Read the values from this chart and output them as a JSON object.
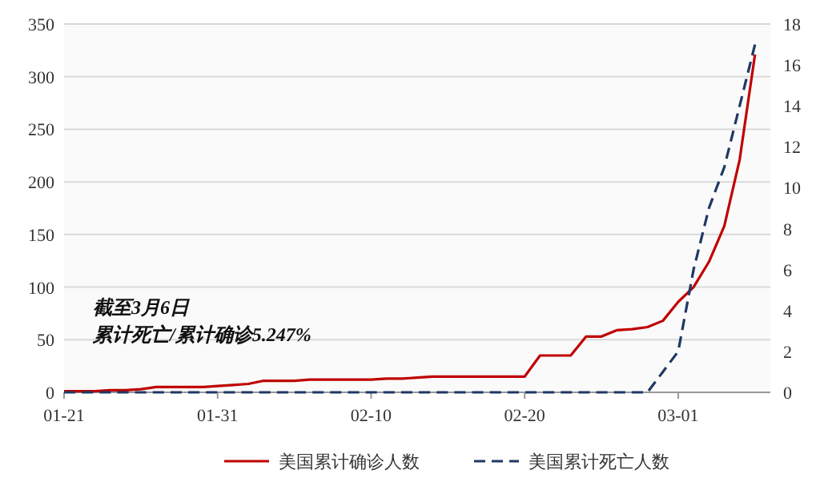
{
  "chart_data": {
    "type": "line",
    "x": [
      "--01-21",
      "--01-22",
      "--01-23",
      "--01-24",
      "--01-25",
      "--01-26",
      "--01-27",
      "--01-28",
      "--01-29",
      "--01-30",
      "--01-31",
      "--02-01",
      "--02-02",
      "--02-03",
      "--02-04",
      "--02-05",
      "--02-06",
      "--02-07",
      "--02-08",
      "--02-09",
      "--02-10",
      "--02-11",
      "--02-12",
      "--02-13",
      "--02-14",
      "--02-15",
      "--02-16",
      "--02-17",
      "--02-18",
      "--02-19",
      "--02-20",
      "--02-21",
      "--02-22",
      "--02-23",
      "--02-24",
      "--02-25",
      "--02-26",
      "--02-27",
      "--02-28",
      "--02-29",
      "--03-01",
      "--03-02",
      "--03-03",
      "--03-04",
      "--03-05",
      "--03-06"
    ],
    "series": [
      {
        "name": "美国累计确诊人数",
        "color": "#c00000",
        "line_style": "solid",
        "values": [
          1,
          1,
          1,
          2,
          2,
          3,
          5,
          5,
          5,
          5,
          6,
          7,
          8,
          11,
          11,
          11,
          12,
          12,
          12,
          12,
          12,
          13,
          13,
          14,
          15,
          15,
          15,
          15,
          15,
          15,
          15,
          35,
          35,
          35,
          53,
          53,
          59,
          60,
          62,
          68,
          86,
          100,
          124,
          158,
          221,
          321
        ]
      },
      {
        "name": "美国累计死亡人数",
        "color": "#1f3864",
        "line_style": "dashed",
        "axis": "y2",
        "values": [
          0,
          0,
          0,
          0,
          0,
          0,
          0,
          0,
          0,
          0,
          0,
          0,
          0,
          0,
          0,
          0,
          0,
          0,
          0,
          0,
          0,
          0,
          0,
          0,
          0,
          0,
          0,
          0,
          0,
          0,
          0,
          0,
          0,
          0,
          0,
          0,
          0,
          0,
          0,
          1,
          2,
          6,
          9,
          11,
          14,
          17
        ]
      }
    ],
    "xlim": [
      "--01-21",
      "--03-07"
    ],
    "xticks": [
      {
        "value": "--01-21",
        "label": "01-21"
      },
      {
        "value": "--01-31",
        "label": "01-31"
      },
      {
        "value": "--02-10",
        "label": "02-10"
      },
      {
        "value": "--02-20",
        "label": "02-20"
      },
      {
        "value": "--03-01",
        "label": "03-01"
      }
    ],
    "ylim": [
      0,
      350
    ],
    "yticks": [
      0,
      50,
      100,
      150,
      200,
      250,
      300,
      350
    ],
    "y2lim": [
      0,
      18
    ],
    "y2ticks": [
      0,
      2,
      4,
      6,
      8,
      10,
      12,
      14,
      16,
      18
    ],
    "grid": "y",
    "legend": "bottom",
    "marker": "none",
    "annotations": [
      "截至3月6日",
      "累计死亡/累计确诊5.247%"
    ]
  }
}
